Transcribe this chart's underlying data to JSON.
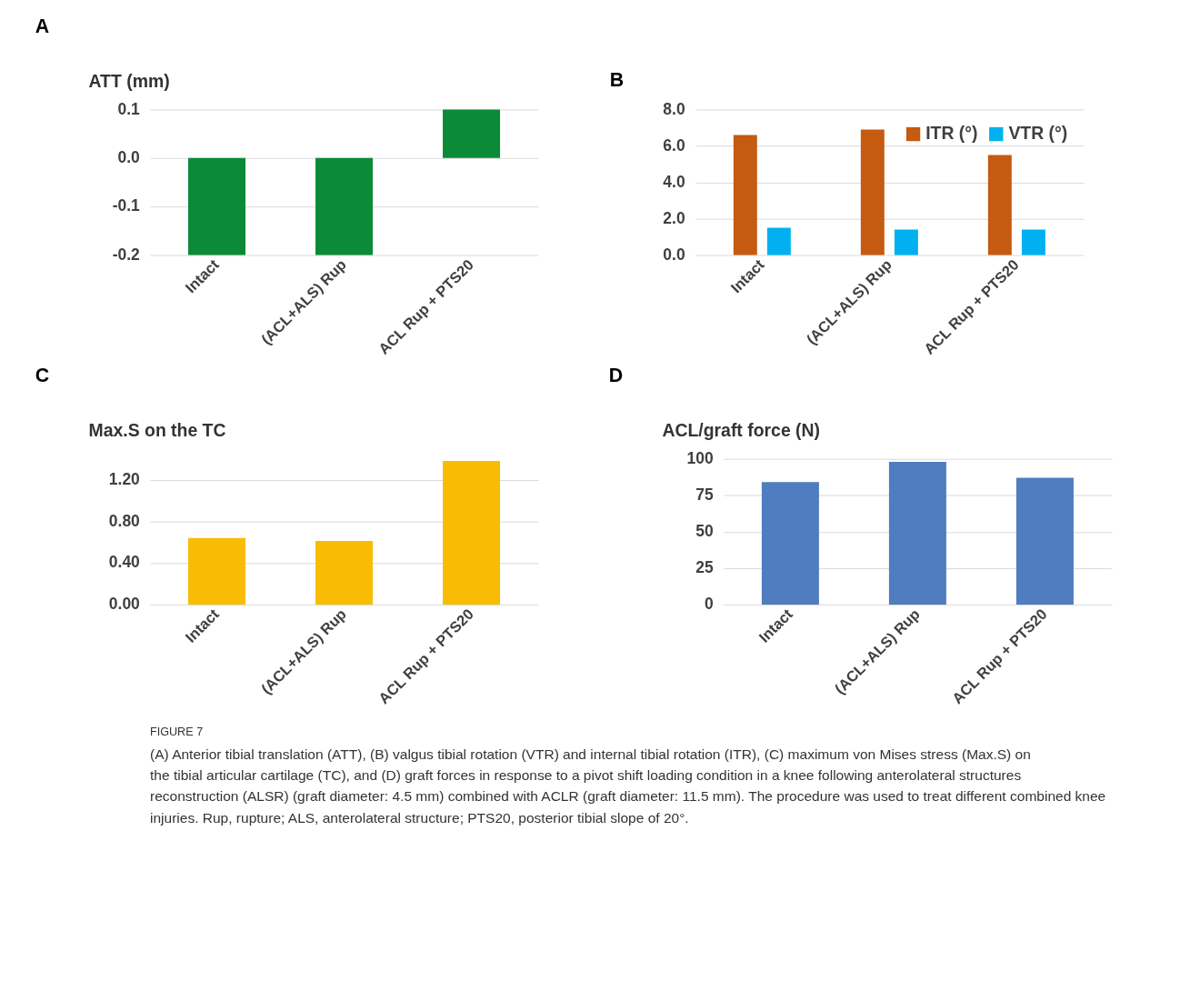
{
  "chart_data": [
    {
      "type": "bar",
      "title": "A",
      "ylabel": "ATT (mm)",
      "categories": [
        "Intact",
        "(ACL+ALS) Rup",
        "ACL Rup + PTS20"
      ],
      "values": [
        -0.2,
        -0.2,
        0.1
      ],
      "color": "#0b8a37",
      "ylim": [
        -0.2,
        0.1
      ],
      "yticks": [
        {
          "value": -0.2,
          "label": "-0.2"
        },
        {
          "value": -0.1,
          "label": "-0.1"
        },
        {
          "value": 0,
          "label": "0.0"
        },
        0.1
      ],
      "grid": "y"
    },
    {
      "type": "bar",
      "title": "B",
      "categories": [
        "Intact",
        "(ACL+ALS) Rup",
        "ACL Rup + PTS20"
      ],
      "series": [
        {
          "name": "ITR (°)",
          "color": "#c55a11",
          "values": [
            6.6,
            6.9,
            5.5
          ]
        },
        {
          "name": "VTR (°)",
          "color": "#00b0f0",
          "values": [
            1.5,
            1.4,
            1.4
          ]
        }
      ],
      "ylim": [
        0,
        8
      ],
      "yticks": [
        {
          "value": 0,
          "label": "0.0"
        },
        {
          "value": 2,
          "label": "2.0"
        },
        {
          "value": 4,
          "label": "4.0"
        },
        {
          "value": 6,
          "label": "6.0"
        },
        {
          "value": 8,
          "label": "8.0"
        }
      ],
      "grid": "y",
      "legend": "top right"
    },
    {
      "type": "bar",
      "title": "C",
      "ylabel": "Max.S on the TC",
      "categories": [
        "Intact",
        "(ACL+ALS) Rup",
        "ACL Rup + PTS20"
      ],
      "values": [
        0.64,
        0.61,
        1.38
      ],
      "color": "#f9bc05",
      "ylim": [
        0,
        1.4
      ],
      "yticks": [
        {
          "value": 0,
          "label": "0.00"
        },
        {
          "value": 0.4,
          "label": "0.40"
        },
        {
          "value": 0.8,
          "label": "0.80"
        },
        {
          "value": 1.2,
          "label": "1.20"
        }
      ],
      "grid": "y"
    },
    {
      "type": "bar",
      "title": "D",
      "ylabel": "ACL/graft force (N)",
      "categories": [
        "Intact",
        "(ACL+ALS) Rup",
        "ACL Rup + PTS20"
      ],
      "values": [
        84,
        98,
        87
      ],
      "color": "#4f7dbf",
      "ylim": [
        0,
        100
      ],
      "yticks": [
        0,
        25,
        50,
        75,
        100
      ],
      "grid": "y",
      "annotations": [
        "FIGURE 7",
        "(A) Anterior tibial translation (ATT), (B) valgus tibial rotation (VTR) and internal tibial rotation (ITR), (C) maximum von Mises stress (Max.S) on the tibial articular cartilage (TC), and (D) graft forces in response to a pivot shift loading condition in a knee following anterolateral structures reconstruction (ALSR) (graft diameter: 4.5 mm) combined with ACLR (graft diameter: 11.5 mm). The procedure was used to treat different combined knee injuries. Rup, rupture; ALS, anterolateral structure; PTS20, posterior tibial slope of 20°."
      ]
    }
  ]
}
